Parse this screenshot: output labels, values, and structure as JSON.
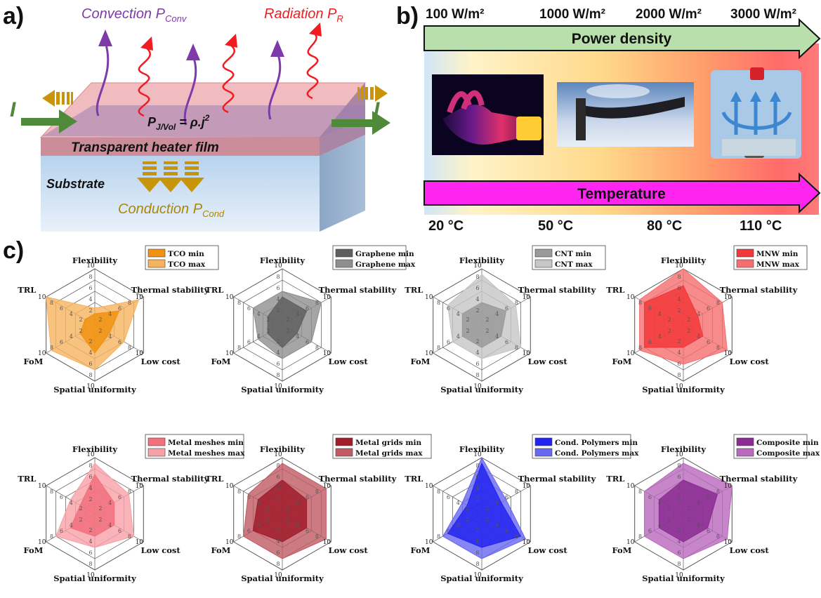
{
  "panel_a": {
    "letter": "a)",
    "convection": "Convection P",
    "convection_sub": "Conv",
    "radiation": "Radiation P",
    "radiation_sub": "R",
    "current_left": "I",
    "current_right": "I",
    "joule_p": "P",
    "joule_sub": "J/Vol",
    "joule_rest": " = ρ.j",
    "joule_sup": "2",
    "film_label": "Transparent heater film",
    "substrate_label": "Substrate",
    "conduction": "Conduction P",
    "conduction_sub": "Cond"
  },
  "panel_b": {
    "letter": "b)",
    "power_labels": [
      "100 W/m²",
      "1000 W/m²",
      "2000 W/m²",
      "3000 W/m²"
    ],
    "power_arrow_label": "Power density",
    "temp_arrow_label": "Temperature",
    "temp_labels": [
      "20 °C",
      "50 °C",
      "80 °C",
      "110 °C"
    ]
  },
  "panel_c": {
    "letter": "c)"
  },
  "chart_data": [
    {
      "type": "radar",
      "axes": [
        "Flexibility",
        "Thermal stability",
        "Low cost",
        "Spatial uniformity",
        "FoM",
        "TRL"
      ],
      "ticks": [
        2,
        4,
        6,
        8,
        10
      ],
      "rmax": 10,
      "series": [
        {
          "name": "TCO min",
          "values": [
            2,
            5,
            3,
            5,
            3,
            2
          ],
          "color": "#f0920f"
        },
        {
          "name": "TCO max",
          "values": [
            3,
            9,
            6,
            8,
            9,
            10
          ],
          "color": "#f6b35f"
        }
      ]
    },
    {
      "type": "radar",
      "axes": [
        "Flexibility",
        "Thermal stability",
        "Low cost",
        "Spatial uniformity",
        "FoM",
        "TRL"
      ],
      "ticks": [
        2,
        4,
        6,
        8,
        10
      ],
      "rmax": 10,
      "series": [
        {
          "name": "Graphene min",
          "values": [
            5,
            5,
            3,
            4,
            3,
            3
          ],
          "color": "#5f5f5f"
        },
        {
          "name": "Graphene max",
          "values": [
            6,
            8,
            6,
            6,
            5,
            6
          ],
          "color": "#8e8e8e"
        }
      ]
    },
    {
      "type": "radar",
      "axes": [
        "Flexibility",
        "Thermal stability",
        "Low cost",
        "Spatial uniformity",
        "FoM",
        "TRL"
      ],
      "ticks": [
        2,
        4,
        6,
        8,
        10
      ],
      "rmax": 10,
      "series": [
        {
          "name": "CNT min",
          "values": [
            4,
            5,
            4,
            4,
            4,
            4
          ],
          "color": "#9a9a9a"
        },
        {
          "name": "CNT max",
          "values": [
            9,
            7,
            8,
            6,
            6,
            7
          ],
          "color": "#c6c6c6"
        }
      ]
    },
    {
      "type": "radar",
      "axes": [
        "Flexibility",
        "Thermal stability",
        "Low cost",
        "Spatial uniformity",
        "FoM",
        "TRL"
      ],
      "ticks": [
        2,
        4,
        6,
        8,
        10
      ],
      "rmax": 10,
      "series": [
        {
          "name": "MNW min",
          "values": [
            7,
            3,
            4,
            4,
            8,
            8
          ],
          "color": "#f2383a"
        },
        {
          "name": "MNW max",
          "values": [
            10,
            8,
            9,
            7,
            9,
            9
          ],
          "color": "#f56e6f"
        }
      ]
    },
    {
      "type": "radar",
      "axes": [
        "Flexibility",
        "Thermal stability",
        "Low cost",
        "Spatial uniformity",
        "FoM",
        "TRL"
      ],
      "ticks": [
        2,
        4,
        6,
        8,
        10
      ],
      "rmax": 10,
      "series": [
        {
          "name": "Metal meshes min",
          "values": [
            7,
            4,
            4,
            4,
            5,
            3
          ],
          "color": "#f26f7c"
        },
        {
          "name": "Metal meshes max",
          "values": [
            9,
            7,
            8,
            6,
            8,
            5
          ],
          "color": "#f7a0a8"
        }
      ]
    },
    {
      "type": "radar",
      "axes": [
        "Flexibility",
        "Thermal stability",
        "Low cost",
        "Spatial uniformity",
        "FoM",
        "TRL"
      ],
      "ticks": [
        2,
        4,
        6,
        8,
        10
      ],
      "rmax": 10,
      "series": [
        {
          "name": "Metal grids min",
          "values": [
            6,
            5,
            5,
            5,
            6,
            5
          ],
          "color": "#a01c2c"
        },
        {
          "name": "Metal grids max",
          "values": [
            9,
            9,
            9,
            8,
            8,
            7
          ],
          "color": "#c15a64"
        }
      ]
    },
    {
      "type": "radar",
      "axes": [
        "Flexibility",
        "Thermal stability",
        "Low cost",
        "Spatial uniformity",
        "FoM",
        "TRL"
      ],
      "ticks": [
        2,
        4,
        6,
        8,
        10
      ],
      "rmax": 10,
      "series": [
        {
          "name": "Cond. Polymers min",
          "values": [
            9,
            4,
            8,
            6,
            7,
            3
          ],
          "color": "#2323f0"
        },
        {
          "name": "Cond. Polymers max",
          "values": [
            10,
            5,
            9,
            8,
            8,
            4
          ],
          "color": "#6767f0"
        }
      ]
    },
    {
      "type": "radar",
      "axes": [
        "Flexibility",
        "Thermal stability",
        "Low cost",
        "Spatial uniformity",
        "FoM",
        "TRL"
      ],
      "ticks": [
        2,
        4,
        6,
        8,
        10
      ],
      "rmax": 10,
      "series": [
        {
          "name": "Composite min",
          "values": [
            6,
            7,
            5,
            5,
            5,
            5
          ],
          "color": "#8a2c92"
        },
        {
          "name": "Composite max",
          "values": [
            9,
            10,
            9,
            8,
            8,
            8
          ],
          "color": "#b968bd"
        }
      ]
    }
  ]
}
